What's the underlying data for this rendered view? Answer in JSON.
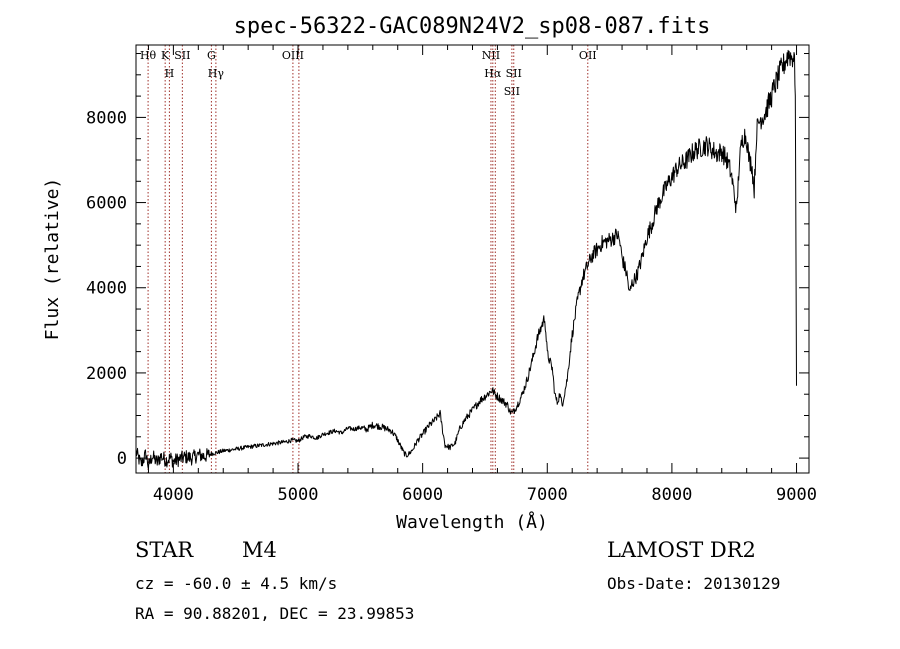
{
  "chart_data": {
    "type": "line",
    "title": "spec-56322-GAC089N24V2_sp08-087.fits",
    "xlabel": "Wavelength (Å)",
    "ylabel": "Flux (relative)",
    "xlim": [
      3700,
      9100
    ],
    "ylim": [
      -350,
      9700
    ],
    "xticks": [
      4000,
      5000,
      6000,
      7000,
      8000,
      9000
    ],
    "yticks": [
      0,
      2000,
      4000,
      6000,
      8000
    ],
    "grid": false,
    "legend": "none",
    "line_color": "#000000",
    "marker_color": "#a0302a",
    "series": [
      {
        "x": [
          3700,
          3740,
          3780,
          3800,
          3830,
          3870,
          3900,
          3940,
          3980,
          4000,
          4050,
          4100,
          4150,
          4200,
          4250,
          4300,
          4350,
          4400,
          4500,
          4600,
          4700,
          4800,
          4900,
          4950,
          5000,
          5050,
          5100,
          5150,
          5200,
          5250,
          5300,
          5350,
          5400,
          5450,
          5500,
          5550,
          5600,
          5650,
          5700,
          5750,
          5790,
          5820,
          5850,
          5870,
          5890,
          5920,
          5960,
          6000,
          6050,
          6100,
          6140,
          6160,
          6180,
          6220,
          6260,
          6300,
          6340,
          6380,
          6420,
          6460,
          6500,
          6540,
          6560,
          6580,
          6620,
          6660,
          6680,
          6700,
          6720,
          6760,
          6800,
          6840,
          6880,
          6920,
          6960,
          6980,
          7000,
          7040,
          7060,
          7080,
          7100,
          7120,
          7140,
          7160,
          7180,
          7200,
          7240,
          7280,
          7320,
          7360,
          7400,
          7440,
          7480,
          7520,
          7560,
          7580,
          7600,
          7640,
          7660,
          7680,
          7720,
          7760,
          7800,
          7840,
          7880,
          7920,
          7960,
          8000,
          8040,
          8080,
          8120,
          8160,
          8200,
          8240,
          8280,
          8320,
          8360,
          8400,
          8440,
          8460,
          8480,
          8500,
          8520,
          8540,
          8560,
          8580,
          8600,
          8620,
          8640,
          8660,
          8680,
          8700,
          8720,
          8740,
          8760,
          8780,
          8800,
          8820,
          8840,
          8860,
          8880,
          8900,
          8920,
          8940,
          8960,
          8980,
          8990,
          9000
        ],
        "y": [
          150,
          -150,
          100,
          -200,
          50,
          -100,
          50,
          -50,
          0,
          -80,
          -20,
          30,
          0,
          80,
          40,
          100,
          130,
          170,
          210,
          260,
          300,
          340,
          380,
          420,
          400,
          500,
          520,
          470,
          560,
          600,
          640,
          590,
          700,
          680,
          720,
          670,
          780,
          750,
          700,
          640,
          480,
          300,
          120,
          60,
          100,
          200,
          420,
          560,
          760,
          900,
          1050,
          650,
          300,
          250,
          350,
          700,
          900,
          1050,
          1200,
          1350,
          1450,
          1550,
          1600,
          1500,
          1400,
          1300,
          1250,
          1100,
          1050,
          1250,
          1500,
          1850,
          2300,
          2800,
          3150,
          3300,
          2450,
          2100,
          1500,
          1300,
          1500,
          1250,
          1550,
          1850,
          2400,
          2900,
          3650,
          4200,
          4500,
          4750,
          4900,
          5050,
          5100,
          5150,
          5250,
          5100,
          4700,
          4300,
          3850,
          4100,
          4300,
          4700,
          5200,
          5500,
          5900,
          6150,
          6400,
          6600,
          6800,
          6900,
          7000,
          7150,
          7250,
          7300,
          7350,
          7250,
          7150,
          7200,
          7000,
          6850,
          6600,
          6200,
          5800,
          6900,
          7400,
          7600,
          7500,
          7000,
          6900,
          6300,
          7700,
          7900,
          8000,
          8050,
          8200,
          8350,
          8500,
          8700,
          8850,
          9000,
          9150,
          9250,
          9400,
          9500,
          9400,
          9450,
          8700,
          1700
        ]
      }
    ],
    "lines": [
      {
        "x": 3797,
        "labels": [
          "Hθ"
        ]
      },
      {
        "x": 3934,
        "labels": [
          "K"
        ]
      },
      {
        "x": 3968,
        "labels": [
          "H"
        ]
      },
      {
        "x": 4072,
        "labels": [
          "SII"
        ]
      },
      {
        "x": 4305,
        "labels": [
          "G"
        ]
      },
      {
        "x": 4341,
        "labels": [
          "Hγ"
        ]
      },
      {
        "x": 4959,
        "labels": [
          "OIII"
        ]
      },
      {
        "x": 5007,
        "labels": []
      },
      {
        "x": 6548,
        "labels": [
          "NII"
        ]
      },
      {
        "x": 6563,
        "labels": [
          "Hα"
        ]
      },
      {
        "x": 6583,
        "labels": []
      },
      {
        "x": 6716,
        "labels": [
          "SII"
        ]
      },
      {
        "x": 6731,
        "labels": [
          "SII"
        ]
      },
      {
        "x": 7325,
        "labels": [
          "OII"
        ]
      }
    ]
  },
  "info": {
    "class": "STAR",
    "subclass": "M4",
    "survey": "LAMOST DR2",
    "cz": "cz = -60.0 ± 4.5 km/s",
    "obs_date": "Obs-Date: 20130129",
    "coords": "RA =  90.88201, DEC =  23.99853"
  }
}
